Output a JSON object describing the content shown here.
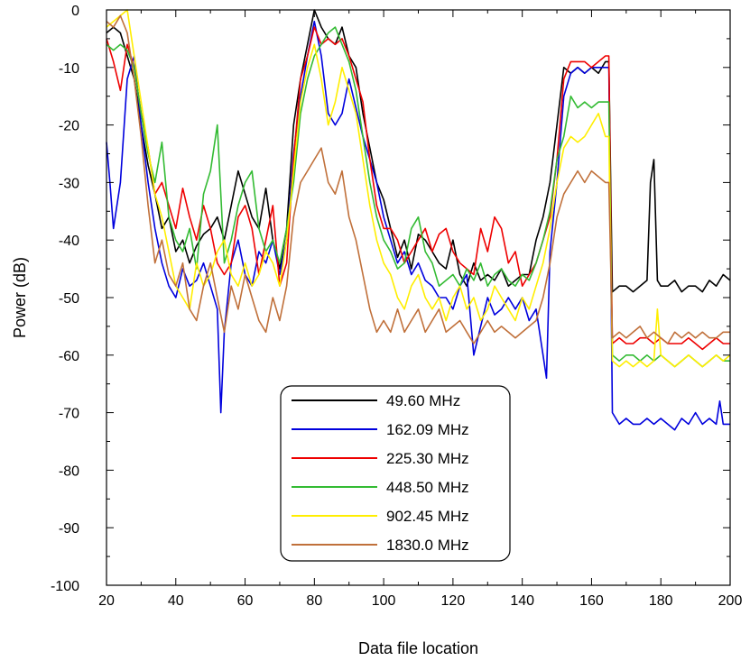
{
  "chart_data": {
    "type": "line",
    "title": "",
    "xlabel": "Data file location",
    "ylabel": "Power (dB)",
    "xlim": [
      20,
      200
    ],
    "ylim": [
      -100,
      0
    ],
    "x_ticks": [
      20,
      40,
      60,
      80,
      100,
      120,
      140,
      160,
      180,
      200
    ],
    "y_ticks": [
      0,
      -10,
      -20,
      -30,
      -40,
      -50,
      -60,
      -70,
      -80,
      -90,
      -100
    ],
    "grid": false,
    "legend_position": "bottom-center",
    "series": [
      {
        "name": "49.60 MHz",
        "color": "#000000",
        "x": [
          20,
          22,
          24,
          26,
          28,
          30,
          32,
          34,
          36,
          38,
          40,
          42,
          44,
          46,
          48,
          50,
          52,
          54,
          56,
          58,
          60,
          62,
          64,
          66,
          68,
          70,
          72,
          74,
          76,
          78,
          80,
          82,
          84,
          86,
          88,
          90,
          92,
          94,
          96,
          98,
          100,
          102,
          104,
          106,
          108,
          110,
          112,
          114,
          116,
          118,
          120,
          122,
          124,
          126,
          128,
          130,
          132,
          134,
          136,
          138,
          140,
          142,
          144,
          146,
          148,
          150,
          152,
          154,
          156,
          158,
          160,
          162,
          164,
          165,
          166,
          168,
          170,
          172,
          174,
          176,
          177,
          178,
          179,
          180,
          182,
          184,
          186,
          188,
          190,
          192,
          194,
          196,
          198,
          200
        ],
        "y": [
          -4,
          -3,
          -4,
          -8,
          -12,
          -20,
          -27,
          -32,
          -38,
          -36,
          -42,
          -40,
          -44,
          -41,
          -39,
          -38,
          -36,
          -40,
          -34,
          -28,
          -32,
          -36,
          -38,
          -31,
          -40,
          -45,
          -38,
          -20,
          -12,
          -6,
          0,
          -3,
          -5,
          -6,
          -3,
          -8,
          -10,
          -18,
          -24,
          -30,
          -33,
          -38,
          -43,
          -40,
          -45,
          -39,
          -40,
          -42,
          -44,
          -45,
          -40,
          -46,
          -48,
          -44,
          -47,
          -46,
          -47,
          -45,
          -48,
          -47,
          -46,
          -46,
          -40,
          -36,
          -30,
          -20,
          -10,
          -11,
          -10,
          -11,
          -10,
          -11,
          -9,
          -9,
          -49,
          -48,
          -48,
          -49,
          -48,
          -47,
          -30,
          -26,
          -47,
          -48,
          -48,
          -47,
          -49,
          -48,
          -48,
          -49,
          -47,
          -48,
          -46,
          -47
        ]
      },
      {
        "name": "162.09 MHz",
        "color": "#0000dd",
        "x": [
          20,
          21,
          22,
          24,
          26,
          28,
          30,
          32,
          34,
          36,
          38,
          40,
          42,
          44,
          46,
          48,
          50,
          52,
          53,
          54,
          56,
          58,
          60,
          62,
          64,
          66,
          68,
          70,
          72,
          74,
          76,
          78,
          80,
          82,
          84,
          86,
          88,
          90,
          92,
          94,
          96,
          98,
          100,
          102,
          104,
          106,
          108,
          110,
          112,
          114,
          116,
          118,
          120,
          122,
          124,
          126,
          128,
          130,
          132,
          134,
          136,
          138,
          140,
          142,
          144,
          146,
          147,
          148,
          150,
          152,
          154,
          156,
          158,
          160,
          162,
          164,
          165,
          166,
          168,
          170,
          172,
          174,
          176,
          178,
          180,
          182,
          184,
          186,
          188,
          190,
          192,
          194,
          196,
          197,
          198,
          200
        ],
        "y": [
          -23,
          -30,
          -38,
          -30,
          -12,
          -8,
          -20,
          -30,
          -38,
          -44,
          -48,
          -50,
          -45,
          -48,
          -47,
          -44,
          -48,
          -52,
          -70,
          -56,
          -44,
          -40,
          -46,
          -48,
          -42,
          -44,
          -40,
          -46,
          -40,
          -25,
          -15,
          -8,
          -2,
          -8,
          -18,
          -20,
          -18,
          -12,
          -17,
          -22,
          -26,
          -30,
          -36,
          -40,
          -44,
          -42,
          -46,
          -44,
          -47,
          -48,
          -50,
          -50,
          -52,
          -48,
          -46,
          -60,
          -55,
          -50,
          -53,
          -52,
          -50,
          -52,
          -50,
          -54,
          -52,
          -60,
          -64,
          -42,
          -30,
          -15,
          -11,
          -10,
          -11,
          -10,
          -10,
          -10,
          -10,
          -70,
          -72,
          -71,
          -72,
          -72,
          -71,
          -72,
          -71,
          -72,
          -73,
          -71,
          -72,
          -70,
          -72,
          -71,
          -72,
          -68,
          -72,
          -72
        ]
      },
      {
        "name": "225.30 MHz",
        "color": "#ee0000",
        "x": [
          20,
          22,
          24,
          26,
          28,
          30,
          32,
          34,
          36,
          38,
          40,
          42,
          44,
          46,
          48,
          50,
          52,
          54,
          56,
          58,
          60,
          62,
          64,
          66,
          68,
          70,
          72,
          74,
          76,
          78,
          80,
          82,
          84,
          86,
          88,
          90,
          92,
          94,
          96,
          98,
          100,
          102,
          104,
          106,
          108,
          110,
          112,
          114,
          116,
          118,
          120,
          122,
          124,
          126,
          128,
          130,
          132,
          134,
          136,
          138,
          140,
          142,
          144,
          146,
          148,
          150,
          152,
          154,
          156,
          158,
          160,
          162,
          164,
          165,
          166,
          168,
          170,
          172,
          174,
          176,
          178,
          180,
          182,
          184,
          186,
          188,
          190,
          192,
          194,
          196,
          198,
          200
        ],
        "y": [
          -5,
          -9,
          -14,
          -6,
          -10,
          -18,
          -24,
          -32,
          -30,
          -34,
          -38,
          -31,
          -36,
          -40,
          -34,
          -38,
          -44,
          -46,
          -44,
          -36,
          -34,
          -38,
          -46,
          -40,
          -34,
          -48,
          -44,
          -26,
          -12,
          -8,
          -3,
          -6,
          -5,
          -6,
          -5,
          -8,
          -12,
          -16,
          -26,
          -34,
          -38,
          -38,
          -40,
          -44,
          -42,
          -40,
          -38,
          -42,
          -39,
          -38,
          -42,
          -44,
          -45,
          -46,
          -38,
          -42,
          -36,
          -38,
          -44,
          -42,
          -48,
          -46,
          -44,
          -40,
          -36,
          -26,
          -12,
          -9,
          -9,
          -9,
          -10,
          -9,
          -8,
          -8,
          -58,
          -57,
          -58,
          -58,
          -57,
          -57,
          -58,
          -57,
          -58,
          -58,
          -58,
          -57,
          -58,
          -59,
          -58,
          -57,
          -58,
          -58
        ]
      },
      {
        "name": "448.50 MHz",
        "color": "#33bb33",
        "x": [
          20,
          22,
          24,
          26,
          28,
          30,
          32,
          34,
          36,
          38,
          40,
          42,
          44,
          46,
          48,
          50,
          52,
          54,
          56,
          58,
          60,
          62,
          64,
          66,
          68,
          70,
          72,
          74,
          76,
          78,
          80,
          82,
          84,
          86,
          88,
          90,
          92,
          94,
          96,
          98,
          100,
          102,
          104,
          106,
          108,
          110,
          112,
          114,
          116,
          118,
          120,
          122,
          124,
          126,
          128,
          130,
          132,
          134,
          136,
          138,
          140,
          142,
          144,
          146,
          148,
          150,
          152,
          154,
          156,
          158,
          160,
          162,
          164,
          165,
          166,
          168,
          170,
          172,
          174,
          176,
          178,
          180,
          182,
          184,
          186,
          188,
          190,
          192,
          194,
          196,
          198,
          200
        ],
        "y": [
          -6,
          -7,
          -6,
          -7,
          -10,
          -18,
          -25,
          -30,
          -23,
          -36,
          -40,
          -42,
          -38,
          -45,
          -32,
          -28,
          -20,
          -44,
          -40,
          -34,
          -30,
          -28,
          -38,
          -42,
          -40,
          -44,
          -38,
          -30,
          -18,
          -12,
          -8,
          -6,
          -4,
          -3,
          -6,
          -9,
          -14,
          -22,
          -30,
          -36,
          -40,
          -42,
          -45,
          -44,
          -38,
          -36,
          -42,
          -44,
          -48,
          -47,
          -46,
          -48,
          -45,
          -47,
          -44,
          -48,
          -46,
          -45,
          -47,
          -48,
          -46,
          -47,
          -44,
          -40,
          -35,
          -26,
          -22,
          -15,
          -17,
          -16,
          -17,
          -16,
          -16,
          -16,
          -60,
          -61,
          -60,
          -60,
          -61,
          -60,
          -61,
          -60,
          -61,
          -62,
          -61,
          -60,
          -61,
          -62,
          -61,
          -60,
          -61,
          -61
        ]
      },
      {
        "name": "902.45 MHz",
        "color": "#ffee00",
        "x": [
          20,
          22,
          24,
          26,
          28,
          30,
          32,
          34,
          36,
          38,
          40,
          42,
          44,
          46,
          48,
          50,
          52,
          54,
          56,
          58,
          60,
          62,
          64,
          66,
          68,
          70,
          72,
          74,
          76,
          78,
          80,
          82,
          84,
          86,
          88,
          90,
          92,
          94,
          96,
          98,
          100,
          102,
          104,
          106,
          108,
          110,
          112,
          114,
          116,
          118,
          120,
          122,
          124,
          126,
          128,
          130,
          132,
          134,
          136,
          138,
          140,
          142,
          144,
          146,
          148,
          150,
          152,
          154,
          156,
          158,
          160,
          162,
          164,
          165,
          166,
          168,
          170,
          172,
          174,
          176,
          178,
          179,
          180,
          182,
          184,
          186,
          188,
          190,
          192,
          194,
          196,
          198,
          200
        ],
        "y": [
          -3,
          -2,
          -1,
          0,
          -8,
          -16,
          -24,
          -32,
          -36,
          -42,
          -48,
          -50,
          -52,
          -44,
          -48,
          -46,
          -42,
          -40,
          -46,
          -48,
          -44,
          -48,
          -46,
          -42,
          -44,
          -48,
          -40,
          -28,
          -16,
          -10,
          -6,
          -12,
          -20,
          -16,
          -10,
          -14,
          -18,
          -26,
          -34,
          -40,
          -44,
          -46,
          -50,
          -52,
          -48,
          -46,
          -50,
          -52,
          -50,
          -54,
          -50,
          -48,
          -52,
          -50,
          -54,
          -52,
          -48,
          -50,
          -52,
          -54,
          -50,
          -52,
          -48,
          -44,
          -38,
          -30,
          -24,
          -22,
          -23,
          -22,
          -20,
          -18,
          -22,
          -22,
          -61,
          -62,
          -61,
          -62,
          -61,
          -62,
          -61,
          -52,
          -60,
          -61,
          -62,
          -61,
          -60,
          -61,
          -62,
          -61,
          -60,
          -61,
          -60
        ]
      },
      {
        "name": "1830.0 MHz",
        "color": "#c0703a",
        "x": [
          20,
          22,
          24,
          26,
          28,
          30,
          32,
          34,
          36,
          38,
          40,
          42,
          44,
          46,
          48,
          50,
          52,
          54,
          56,
          58,
          60,
          62,
          64,
          66,
          68,
          70,
          72,
          74,
          76,
          78,
          80,
          82,
          84,
          86,
          88,
          90,
          92,
          94,
          96,
          98,
          100,
          102,
          104,
          106,
          108,
          110,
          112,
          114,
          116,
          118,
          120,
          122,
          124,
          126,
          128,
          130,
          132,
          134,
          136,
          138,
          140,
          142,
          144,
          146,
          148,
          150,
          152,
          154,
          156,
          158,
          160,
          162,
          164,
          165,
          166,
          168,
          170,
          172,
          174,
          176,
          178,
          180,
          182,
          184,
          186,
          188,
          190,
          192,
          194,
          196,
          198,
          200
        ],
        "y": [
          -2,
          -3,
          -1,
          -4,
          -12,
          -22,
          -34,
          -44,
          -40,
          -46,
          -48,
          -44,
          -52,
          -54,
          -48,
          -44,
          -50,
          -56,
          -48,
          -52,
          -46,
          -50,
          -54,
          -56,
          -50,
          -54,
          -48,
          -36,
          -30,
          -28,
          -26,
          -24,
          -30,
          -32,
          -28,
          -36,
          -40,
          -46,
          -52,
          -56,
          -54,
          -56,
          -52,
          -56,
          -54,
          -52,
          -56,
          -54,
          -52,
          -56,
          -55,
          -54,
          -56,
          -58,
          -56,
          -54,
          -56,
          -55,
          -56,
          -57,
          -56,
          -55,
          -54,
          -50,
          -44,
          -36,
          -32,
          -30,
          -28,
          -30,
          -28,
          -29,
          -30,
          -30,
          -57,
          -56,
          -57,
          -56,
          -55,
          -57,
          -56,
          -57,
          -58,
          -56,
          -57,
          -56,
          -57,
          -56,
          -57,
          -57,
          -56,
          -56
        ]
      }
    ]
  }
}
